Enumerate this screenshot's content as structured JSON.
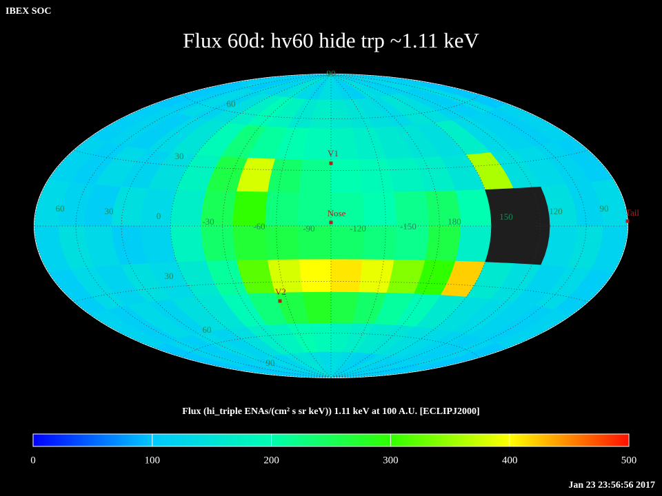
{
  "header": "IBEX SOC",
  "title": "Flux   60d: hv60 hide trp ~1.11 keV",
  "timestamp": "Jan 23 23:56:56 2017",
  "sky_map": {
    "cells": [
      [
        110,
        120,
        100,
        130,
        120,
        140,
        150,
        130,
        120,
        140,
        130,
        120,
        110,
        140,
        130,
        120,
        110,
        130,
        120,
        110
      ],
      [
        100,
        110,
        130,
        120,
        140,
        170,
        190,
        180,
        160,
        170,
        160,
        150,
        140,
        130,
        150,
        140,
        120,
        110,
        130,
        100
      ],
      [
        110,
        120,
        110,
        130,
        150,
        190,
        230,
        210,
        200,
        190,
        180,
        170,
        160,
        150,
        140,
        170,
        130,
        120,
        110,
        120
      ],
      [
        120,
        110,
        130,
        120,
        140,
        180,
        260,
        380,
        240,
        220,
        200,
        190,
        180,
        170,
        150,
        360,
        140,
        130,
        120,
        110
      ],
      [
        130,
        120,
        110,
        140,
        130,
        170,
        250,
        300,
        230,
        220,
        210,
        200,
        220,
        240,
        200,
        null,
        null,
        140,
        120,
        130
      ],
      [
        120,
        140,
        130,
        110,
        120,
        180,
        240,
        270,
        260,
        250,
        240,
        230,
        220,
        260,
        170,
        null,
        null,
        130,
        140,
        120
      ],
      [
        110,
        130,
        120,
        140,
        130,
        160,
        210,
        320,
        380,
        400,
        410,
        390,
        340,
        300,
        420,
        160,
        140,
        120,
        130,
        110
      ],
      [
        120,
        110,
        130,
        120,
        140,
        150,
        190,
        230,
        260,
        280,
        260,
        240,
        210,
        190,
        160,
        140,
        130,
        120,
        110,
        120
      ],
      [
        100,
        120,
        110,
        130,
        120,
        140,
        170,
        180,
        200,
        190,
        180,
        170,
        160,
        150,
        140,
        130,
        120,
        110,
        120,
        100
      ],
      [
        110,
        100,
        120,
        110,
        130,
        120,
        140,
        150,
        140,
        130,
        140,
        130,
        120,
        110,
        130,
        120,
        110,
        120,
        100,
        110
      ]
    ],
    "null_color": "#1e1e1e",
    "grid_labels": [
      "90",
      "60",
      "30",
      "60",
      "30",
      "0",
      "-30",
      "-60",
      "-90",
      "-120",
      "-150",
      "180",
      "150",
      "120",
      "90",
      "30",
      "60",
      "90"
    ],
    "grid_label_color": "#1f8a5a",
    "markers": [
      "V1",
      "Nose",
      "V2",
      "Tail"
    ],
    "marker_color": "#b02020"
  },
  "colorbar": {
    "label": "Flux (hi_triple ENAs/(cm² s sr keV))  1.11 keV at 100 A.U. [ECLIPJ2000]",
    "lim": [
      0,
      500
    ],
    "ticks": [
      0,
      100,
      200,
      300,
      400,
      500
    ],
    "colors": [
      "#0000ff",
      "#00c8ff",
      "#00ffb0",
      "#30ff00",
      "#ffff00",
      "#ff1000"
    ]
  }
}
